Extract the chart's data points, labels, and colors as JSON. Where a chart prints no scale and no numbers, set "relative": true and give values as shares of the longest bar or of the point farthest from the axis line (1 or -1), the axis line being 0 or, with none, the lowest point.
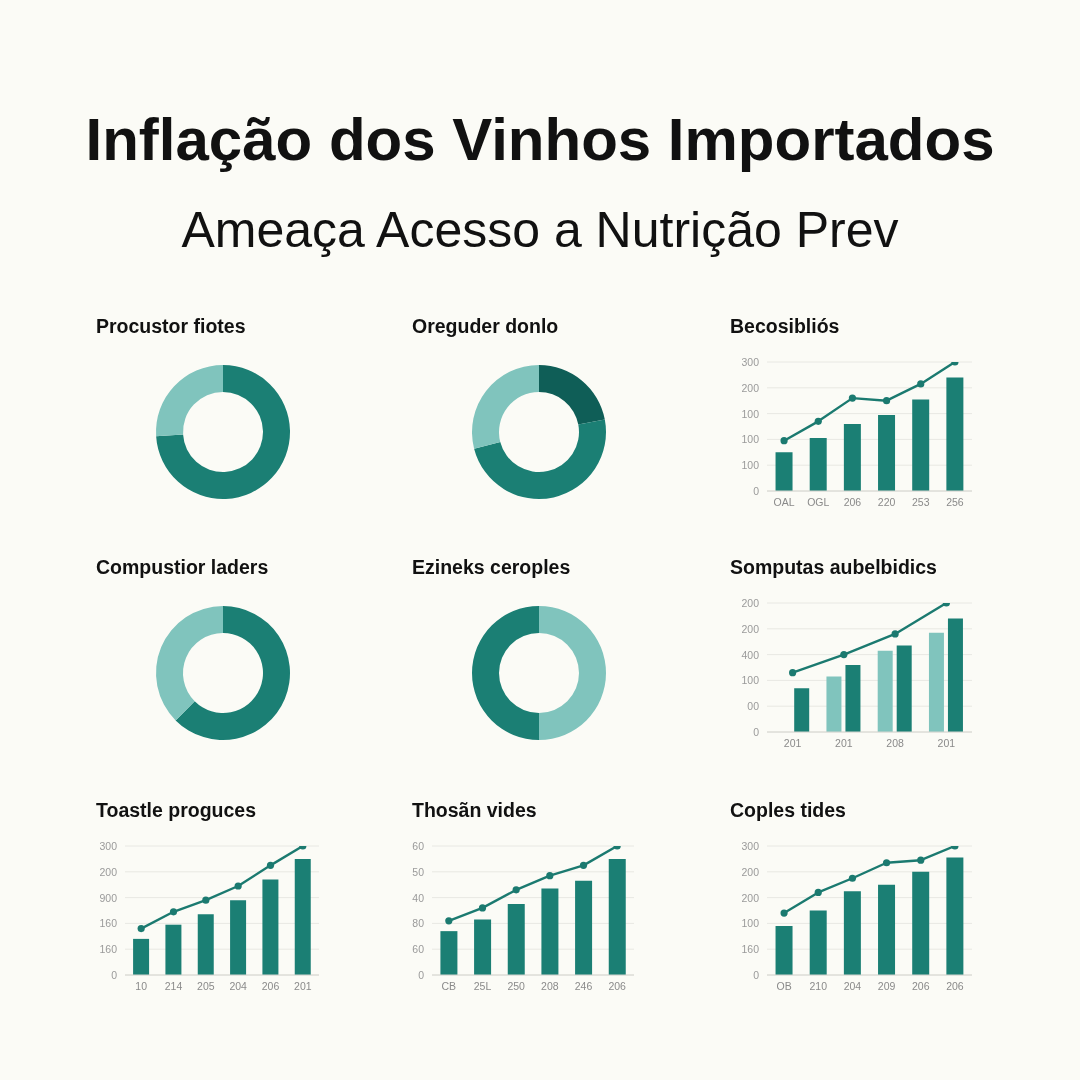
{
  "chart_data": [
    {
      "type": "other",
      "title": "Inflação dos Vinhos Importados",
      "subtitle": "Ameaça Acesso a Nutrição Prev"
    },
    {
      "type": "donut",
      "title": "Procustor fiotes",
      "categories": [
        null,
        null
      ],
      "values": [
        74,
        26
      ],
      "colors": [
        "#1b7f74",
        "#80c4bd"
      ]
    },
    {
      "type": "donut",
      "title": "Oreguder donlo",
      "categories": [
        null,
        null,
        null
      ],
      "values": [
        22,
        49,
        29
      ],
      "colors": [
        "#0f5e57",
        "#1b7f74",
        "#80c4bd"
      ]
    },
    {
      "type": "bar",
      "title": "Becosibliós",
      "categories": [
        "OAL",
        "OGL",
        "206",
        "220",
        "253",
        "256"
      ],
      "relative": true,
      "series": [
        {
          "type": "bar",
          "color": "#1b7f74",
          "values": [
            0.3,
            0.41,
            0.52,
            0.59,
            0.71,
            0.88
          ]
        },
        {
          "type": "line",
          "color": "#1b7a70",
          "values": [
            0.39,
            0.54,
            0.72,
            0.7,
            0.83,
            1
          ]
        }
      ],
      "annotations": [
        "300",
        "200",
        "100",
        "100",
        "100",
        "0"
      ],
      "grid": "y",
      "marker": "circle"
    },
    {
      "type": "donut",
      "title": "Compustior laders",
      "categories": [
        null,
        null
      ],
      "values": [
        62.5,
        37.5
      ],
      "colors": [
        "#1b7f74",
        "#80c4bd"
      ]
    },
    {
      "type": "donut",
      "title": "Ezineks ceroples",
      "categories": [
        null,
        null
      ],
      "values": [
        50,
        50
      ],
      "colors": [
        "#80c4bd",
        "#1b7f74"
      ]
    },
    {
      "type": "bar",
      "title": "Somputas aubelbidics",
      "categories": [
        "201",
        "201",
        "208",
        "201"
      ],
      "relative": true,
      "series": [
        {
          "type": "bar",
          "color": "#80c4bd",
          "values": [
            null,
            0.43,
            0.63,
            0.77
          ]
        },
        {
          "type": "bar",
          "color": "#1b7f74",
          "values": [
            0.34,
            0.52,
            0.67,
            0.88
          ]
        },
        {
          "type": "line",
          "color": "#1b7a70",
          "values": [
            0.46,
            0.6,
            0.76,
            1
          ]
        }
      ],
      "annotations": [
        "200",
        "200",
        "400",
        "100",
        "00",
        "0"
      ],
      "grid": "y",
      "marker": "circle"
    },
    {
      "type": "bar",
      "title": "Toastle proguces",
      "categories": [
        "10",
        "214",
        "205",
        "204",
        "206",
        "201"
      ],
      "relative": true,
      "series": [
        {
          "type": "bar",
          "color": "#1b7f74",
          "values": [
            0.28,
            0.39,
            0.47,
            0.58,
            0.74,
            0.9
          ]
        },
        {
          "type": "line",
          "color": "#1b7a70",
          "values": [
            0.36,
            0.49,
            0.58,
            0.69,
            0.85,
            1
          ]
        }
      ],
      "annotations": [
        "300",
        "200",
        "900",
        "160",
        "160",
        "0"
      ],
      "grid": "y",
      "marker": "circle"
    },
    {
      "type": "bar",
      "title": "Thosãn vides",
      "categories": [
        "CB",
        "25L",
        "250",
        "208",
        "246",
        "206"
      ],
      "relative": true,
      "series": [
        {
          "type": "bar",
          "color": "#1b7f74",
          "values": [
            0.34,
            0.43,
            0.55,
            0.67,
            0.73,
            0.9
          ]
        },
        {
          "type": "line",
          "color": "#1b7a70",
          "values": [
            0.42,
            0.52,
            0.66,
            0.77,
            0.85,
            1
          ]
        }
      ],
      "annotations": [
        "60",
        "50",
        "40",
        "80",
        "60",
        "0"
      ],
      "grid": "y",
      "marker": "circle"
    },
    {
      "type": "bar",
      "title": "Coples tides",
      "categories": [
        "OB",
        "210",
        "204",
        "209",
        "206",
        "206"
      ],
      "relative": true,
      "series": [
        {
          "type": "bar",
          "color": "#1b7f74",
          "values": [
            0.38,
            0.5,
            0.65,
            0.7,
            0.8,
            0.91
          ]
        },
        {
          "type": "line",
          "color": "#1b7a70",
          "values": [
            0.48,
            0.64,
            0.75,
            0.87,
            0.89,
            1
          ]
        }
      ],
      "annotations": [
        "300",
        "200",
        "200",
        "100",
        "160",
        "0"
      ],
      "grid": "y",
      "marker": "circle"
    }
  ]
}
